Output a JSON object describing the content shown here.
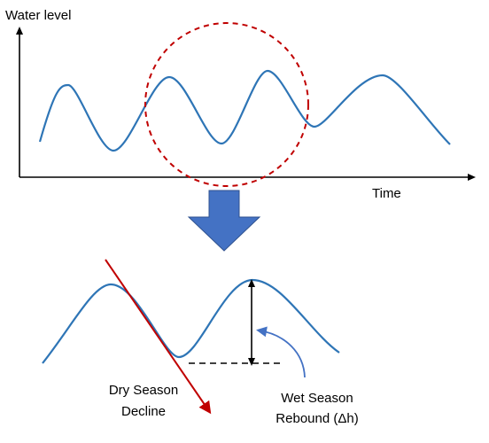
{
  "top_chart": {
    "y_axis_label": "Water level",
    "x_axis_label": "Time"
  },
  "bottom_chart": {
    "dry_season_label_line1": "Dry Season",
    "dry_season_label_line2": "Decline",
    "wet_season_label_line1": "Wet Season",
    "wet_season_label_line2": "Rebound (Δh)"
  },
  "colors": {
    "wave": "#2E75B6",
    "zoom_circle": "#C00000",
    "decline_arrow": "#C00000",
    "down_arrow": "#4472C4",
    "callout_arrow": "#4472C4",
    "axis": "#000000"
  }
}
